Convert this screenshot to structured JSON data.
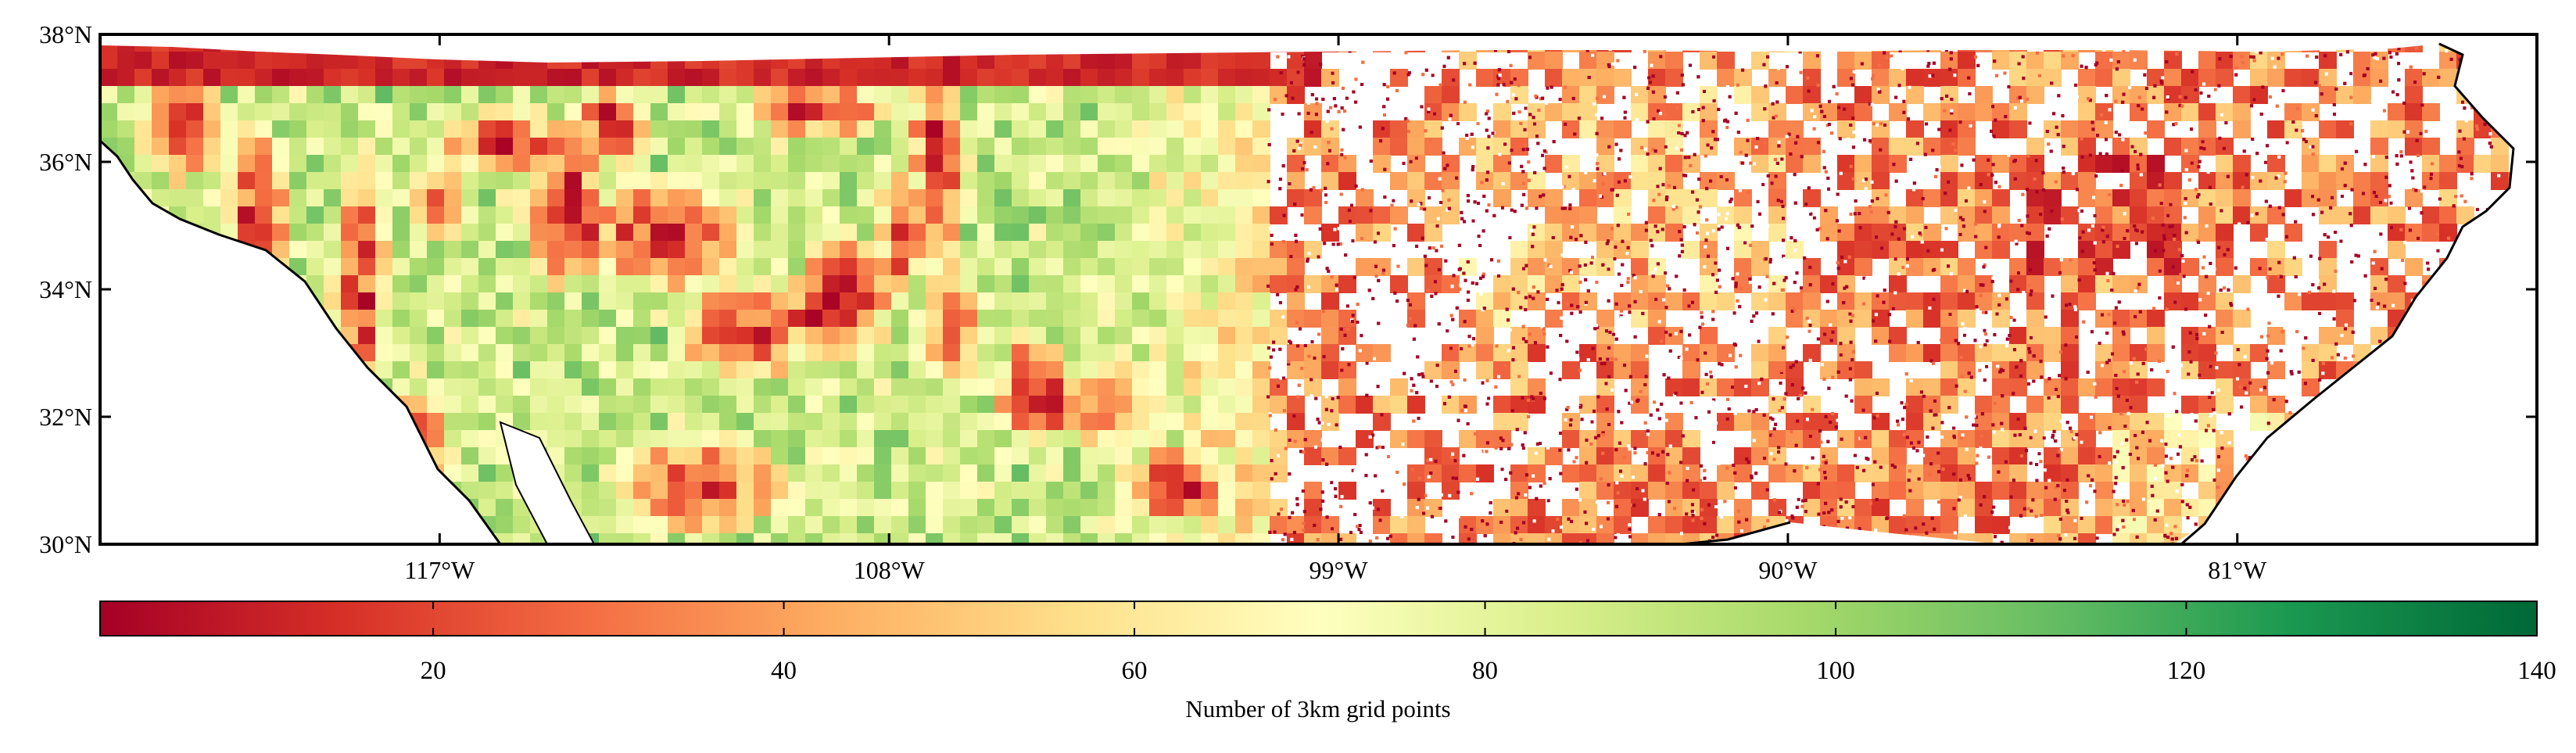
{
  "map": {
    "lat_labels": [
      "38°N",
      "36°N",
      "34°N",
      "32°N",
      "30°N"
    ],
    "lon_labels": [
      "117°W",
      "108°W",
      "99°W",
      "90°W",
      "81°W"
    ],
    "lat_range": [
      30,
      38
    ],
    "lon_range": [
      -123.8,
      -75.0
    ],
    "lat_ticks": [
      38,
      36,
      34,
      32,
      30
    ],
    "lon_ticks": [
      -117,
      -108,
      -99,
      -90,
      -81
    ],
    "west_region_color": "high values (green/yellow) with red mountain ridges",
    "east_region_color": "scattered low values (red/orange) with many empty pixels"
  },
  "colorbar": {
    "tick_labels": [
      "20",
      "40",
      "60",
      "80",
      "100",
      "120",
      "140"
    ],
    "tick_values": [
      20,
      40,
      60,
      80,
      100,
      120,
      140
    ],
    "range": [
      1,
      140
    ],
    "label": "Number of 3km grid points",
    "stops": [
      "#a50026",
      "#d73027",
      "#f46d43",
      "#fdae61",
      "#fee08b",
      "#ffffbf",
      "#d9ef8b",
      "#a6d96a",
      "#66bd63",
      "#1a9850",
      "#006837"
    ]
  }
}
